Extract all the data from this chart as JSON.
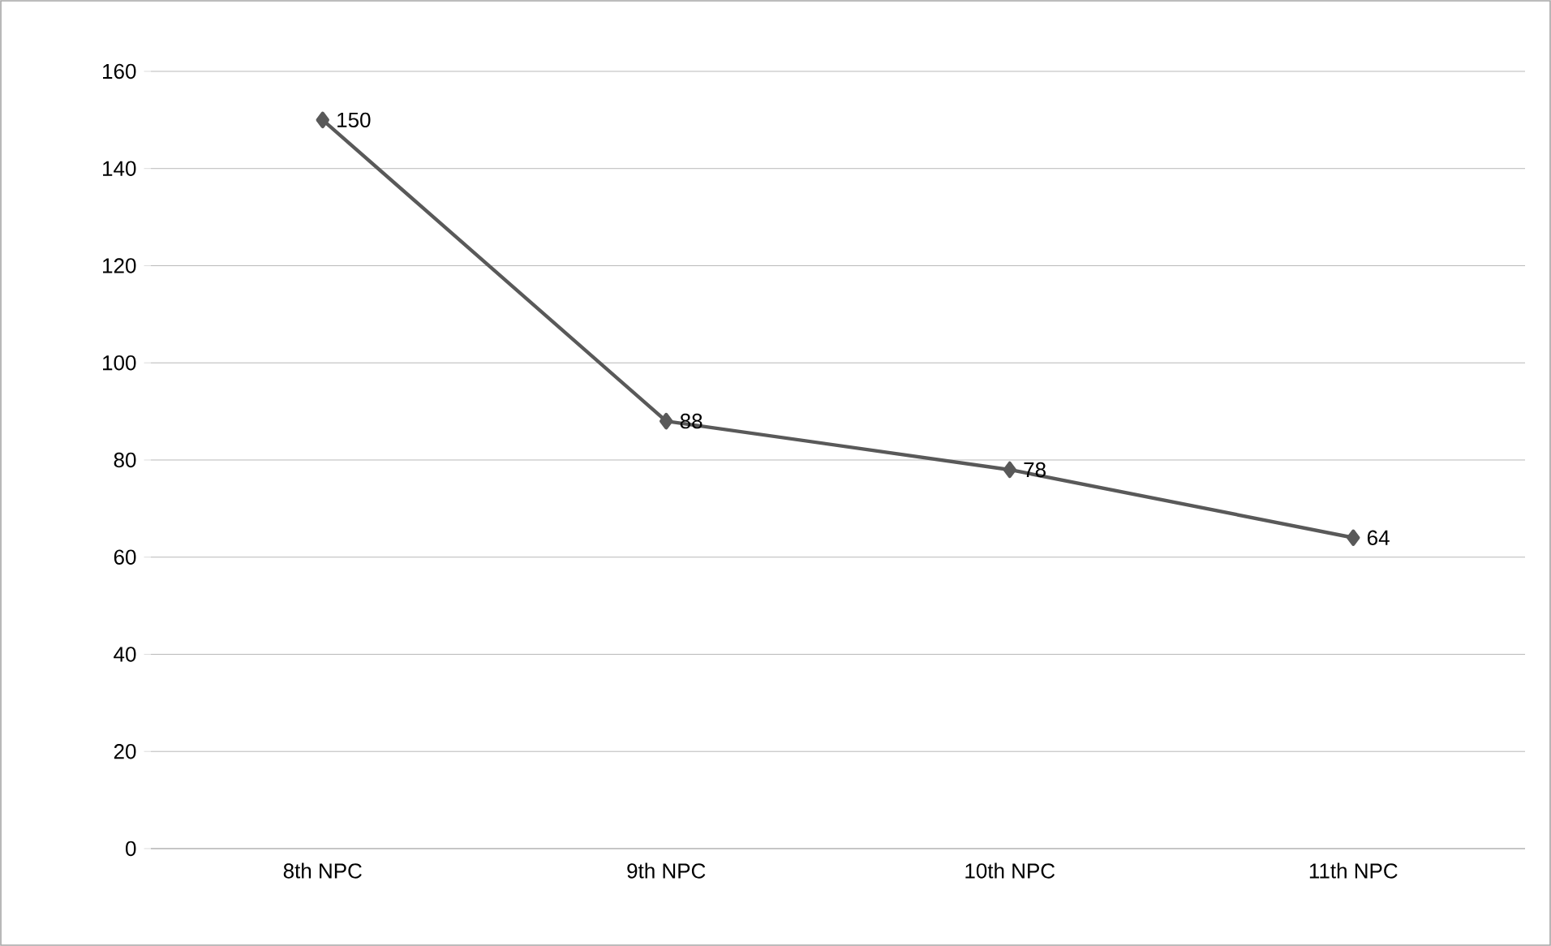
{
  "chart_data": {
    "type": "line",
    "categories": [
      "8th NPC",
      "9th NPC",
      "10th NPC",
      "11th NPC"
    ],
    "values": [
      150,
      88,
      78,
      64
    ],
    "color": "#595959",
    "marker": "diamond",
    "line_style": "solid",
    "data_labels": true,
    "grid": "y",
    "ylim": [
      0,
      160
    ],
    "yticks": [
      0,
      20,
      40,
      60,
      80,
      100,
      120,
      140,
      160
    ]
  }
}
